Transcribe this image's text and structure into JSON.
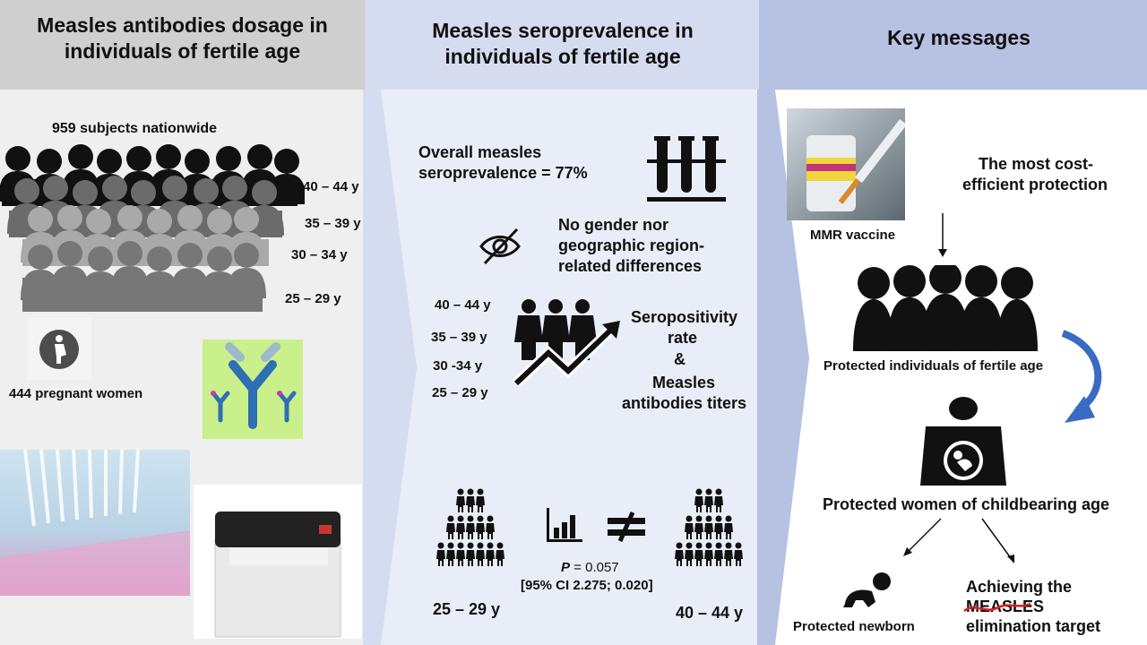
{
  "panels": {
    "left": {
      "title": "Measles antibodies dosage in individuals of fertile age",
      "subjects": "959 subjects nationwide",
      "age_groups": [
        "40 – 44 y",
        "35 – 39 y",
        "30 – 34 y",
        "25 – 29 y"
      ],
      "pregnant": "444 pregnant women"
    },
    "middle": {
      "title": "Measles seroprevalence in individuals of fertile age",
      "overall_line1": "Overall measles",
      "overall_line2": "seroprevalence = 77%",
      "no_diff_line1": "No gender nor",
      "no_diff_line2": "geographic region-",
      "no_diff_line3": "related differences",
      "age_groups": [
        "40 – 44 y",
        "35 – 39 y",
        "30 -34 y",
        "25 – 29 y"
      ],
      "sero_line1": "Seropositivity",
      "sero_line2": "rate",
      "amp": "&",
      "titers_line1": "Measles",
      "titers_line2": "antibodies titers",
      "p_label": "P",
      "p_value": " = 0.057",
      "ci": "[95% CI 2.275; 0.020]",
      "left_group": "25 – 29 y",
      "right_group": "40 – 44 y"
    },
    "right": {
      "title": "Key messages",
      "vaccine_label": "MMR vaccine",
      "cost_line1": "The most cost-",
      "cost_line2": "efficient protection",
      "protected_individuals": "Protected individuals of fertile age",
      "protected_women": "Protected women of childbearing age",
      "newborn": "Protected newborn",
      "elim_line1": "Achieving the",
      "elim_word": "MEASLES",
      "elim_line3": "elimination target"
    }
  },
  "colors": {
    "left_bg": "#efefef",
    "left_header": "#cfcfcf",
    "middle_bg": "#d5dcef",
    "right_header": "#b7c1e2",
    "arrow_blue": "#3a6bc4",
    "strike_red": "#d62222"
  }
}
